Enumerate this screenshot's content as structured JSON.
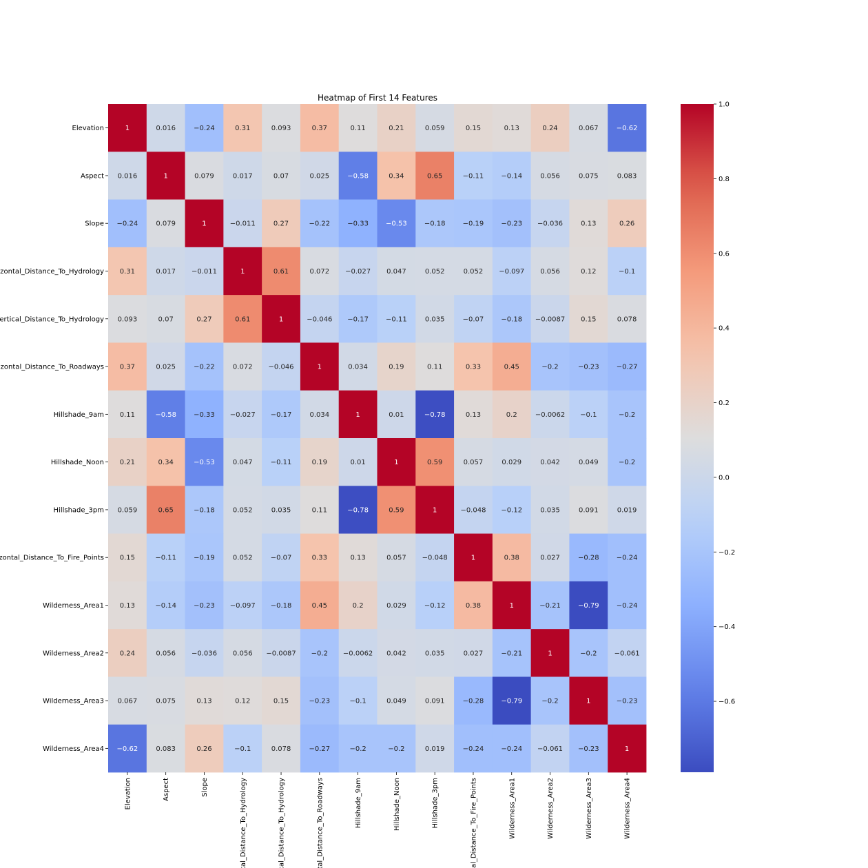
{
  "chart_data": {
    "type": "heatmap",
    "title": "Heatmap of First 14 Features",
    "labels": [
      "Elevation",
      "Aspect",
      "Slope",
      "Horizontal_Distance_To_Hydrology",
      "Vertical_Distance_To_Hydrology",
      "Horizontal_Distance_To_Roadways",
      "Hillshade_9am",
      "Hillshade_Noon",
      "Hillshade_3pm",
      "Horizontal_Distance_To_Fire_Points",
      "Wilderness_Area1",
      "Wilderness_Area2",
      "Wilderness_Area3",
      "Wilderness_Area4"
    ],
    "matrix": [
      [
        1,
        0.016,
        -0.24,
        0.31,
        0.093,
        0.37,
        0.11,
        0.21,
        0.059,
        0.15,
        0.13,
        0.24,
        0.067,
        -0.62
      ],
      [
        0.016,
        1,
        0.079,
        0.017,
        0.07,
        0.025,
        -0.58,
        0.34,
        0.65,
        -0.11,
        -0.14,
        0.056,
        0.075,
        0.083
      ],
      [
        -0.24,
        0.079,
        1,
        -0.011,
        0.27,
        -0.22,
        -0.33,
        -0.53,
        -0.18,
        -0.19,
        -0.23,
        -0.036,
        0.13,
        0.26
      ],
      [
        0.31,
        0.017,
        -0.011,
        1,
        0.61,
        0.072,
        -0.027,
        0.047,
        0.052,
        0.052,
        -0.097,
        0.056,
        0.12,
        -0.1
      ],
      [
        0.093,
        0.07,
        0.27,
        0.61,
        1,
        -0.046,
        -0.17,
        -0.11,
        0.035,
        -0.07,
        -0.18,
        -0.0087,
        0.15,
        0.078
      ],
      [
        0.37,
        0.025,
        -0.22,
        0.072,
        -0.046,
        1,
        0.034,
        0.19,
        0.11,
        0.33,
        0.45,
        -0.2,
        -0.23,
        -0.27
      ],
      [
        0.11,
        -0.58,
        -0.33,
        -0.027,
        -0.17,
        0.034,
        1,
        0.01,
        -0.78,
        0.13,
        0.2,
        -0.0062,
        -0.1,
        -0.2
      ],
      [
        0.21,
        0.34,
        -0.53,
        0.047,
        -0.11,
        0.19,
        0.01,
        1,
        0.59,
        0.057,
        0.029,
        0.042,
        0.049,
        -0.2
      ],
      [
        0.059,
        0.65,
        -0.18,
        0.052,
        0.035,
        0.11,
        -0.78,
        0.59,
        1,
        -0.048,
        -0.12,
        0.035,
        0.091,
        0.019
      ],
      [
        0.15,
        -0.11,
        -0.19,
        0.052,
        -0.07,
        0.33,
        0.13,
        0.057,
        -0.048,
        1,
        0.38,
        0.027,
        -0.28,
        -0.24
      ],
      [
        0.13,
        -0.14,
        -0.23,
        -0.097,
        -0.18,
        0.45,
        0.2,
        0.029,
        -0.12,
        0.38,
        1,
        -0.21,
        -0.79,
        -0.24
      ],
      [
        0.24,
        0.056,
        -0.036,
        0.056,
        -0.0087,
        -0.2,
        -0.0062,
        0.042,
        0.035,
        0.027,
        -0.21,
        1,
        -0.2,
        -0.061
      ],
      [
        0.067,
        0.075,
        0.13,
        0.12,
        0.15,
        -0.23,
        -0.1,
        0.049,
        0.091,
        -0.28,
        -0.79,
        -0.2,
        1,
        -0.23
      ],
      [
        -0.62,
        0.083,
        0.26,
        -0.1,
        0.078,
        -0.27,
        -0.2,
        -0.2,
        0.019,
        -0.24,
        -0.24,
        -0.061,
        -0.23,
        1
      ]
    ],
    "color_range": [
      -0.79,
      1
    ],
    "colormap": "coolwarm",
    "colorbar_ticks": [
      1.0,
      0.8,
      0.6,
      0.4,
      0.2,
      0.0,
      -0.2,
      -0.4,
      -0.6
    ],
    "colorbar_tick_labels": [
      "1.0",
      "0.8",
      "0.6",
      "0.4",
      "0.2",
      "0.0",
      "−0.2",
      "−0.4",
      "−0.6"
    ],
    "annotations": true,
    "legend": "colorbar-right"
  }
}
